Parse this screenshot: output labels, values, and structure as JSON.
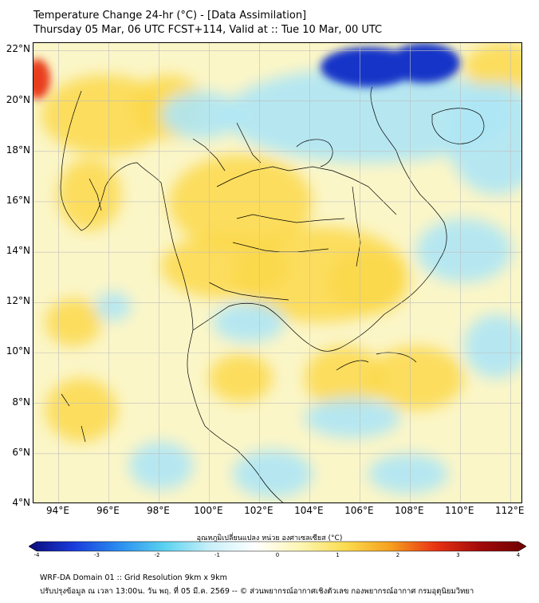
{
  "title_line1": "Temperature Change 24-hr (°C) - [Data Assimilation]",
  "title_line2": "Thursday 05 Mar, 06 UTC FCST+114, Valid at :: Tue 10 Mar, 00 UTC",
  "map": {
    "lat_labels": [
      "22°N",
      "20°N",
      "18°N",
      "16°N",
      "14°N",
      "12°N",
      "10°N",
      "8°N",
      "6°N",
      "4°N"
    ],
    "lat_values": [
      22,
      20,
      18,
      16,
      14,
      12,
      10,
      8,
      6,
      4
    ],
    "lon_labels": [
      "94°E",
      "96°E",
      "98°E",
      "100°E",
      "102°E",
      "104°E",
      "106°E",
      "108°E",
      "110°E",
      "112°E"
    ],
    "lon_values": [
      94,
      96,
      98,
      100,
      102,
      104,
      106,
      108,
      110,
      112
    ],
    "extent": {
      "lon_min": 93,
      "lon_max": 112.5,
      "lat_min": 4,
      "lat_max": 22.3
    },
    "background_color": "#fbf6c8",
    "warm_color": "#fbd84a",
    "cool_color": "#aee6f5",
    "cold_color": "#1236c8",
    "hot_color": "#e83c1a"
  },
  "colorbar": {
    "title": "อุณหภูมิเปลี่ยนแปลง หน่วย องศาเซลเซียส (°C)",
    "ticks": [
      "-4",
      "-3",
      "-2",
      "-1",
      "0",
      "1",
      "2",
      "3",
      "4"
    ],
    "tick_values": [
      -4,
      -3,
      -2,
      -1,
      0,
      1,
      2,
      3,
      4
    ],
    "range": [
      -4,
      4
    ],
    "stops": [
      "#0a0a78",
      "#1a3cdc",
      "#2a8ef0",
      "#5ad2f0",
      "#c8f0fa",
      "#ffffff",
      "#fdf6b4",
      "#fbdc50",
      "#f5a01e",
      "#e83214",
      "#a00a0a",
      "#6e0000"
    ]
  },
  "footer_line1": "WRF-DA Domain 01 :: Grid Resolution 9km x 9km",
  "footer_line2": "ปรับปรุงข้อมูล ณ เวลา 13:00น. วัน พฤ. ที่ 05 มี.ค. 2569 -- © ส่วนพยากรณ์อากาศเชิงตัวเลข กองพยากรณ์อากาศ กรมอุตุนิยมวิทยา"
}
